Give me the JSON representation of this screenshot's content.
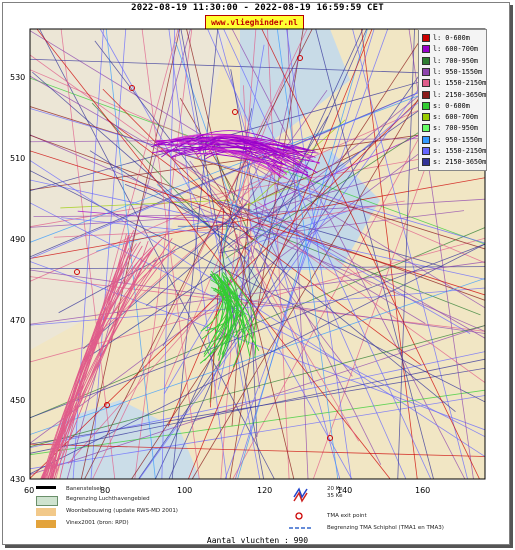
{
  "title": "2022-08-19 11:30:00 - 2022-08-19 16:59:59 CET",
  "brand": "www.vlieghinder.nl",
  "axes": {
    "y_labels": [
      "530",
      "510",
      "490",
      "470",
      "450",
      "430"
    ],
    "x_labels": [
      "60",
      "80",
      "100",
      "120",
      "140",
      "160"
    ]
  },
  "legend": [
    {
      "label": "l: 0-600m",
      "color": "#cc0000"
    },
    {
      "label": "l: 600-700m",
      "color": "#9900cc"
    },
    {
      "label": "l: 700-950m",
      "color": "#2e7d32"
    },
    {
      "label": "l: 950-1550m",
      "color": "#8e44ad"
    },
    {
      "label": "l: 1550-2150m",
      "color": "#e05c8a"
    },
    {
      "label": "l: 2150-3650m",
      "color": "#8b1a1a"
    },
    {
      "label": "s: 0-600m",
      "color": "#33cc33"
    },
    {
      "label": "s: 600-700m",
      "color": "#99cc00"
    },
    {
      "label": "s: 700-950m",
      "color": "#66ff66"
    },
    {
      "label": "s: 950-1550m",
      "color": "#3399ff"
    },
    {
      "label": "s: 1550-2150m",
      "color": "#6666ff"
    },
    {
      "label": "s: 2150-3650m",
      "color": "#333399"
    }
  ],
  "bottom_legend": {
    "runway": "Banenstelsel",
    "airport": "Begrenzing Luchthavengebied",
    "housing": "Woonbebouwing (update RWS-MD 2001)",
    "vinex": "Vinex2001 (bron: RPD)",
    "noise_kw": [
      "20 Ke",
      "35 Ke"
    ],
    "tma_exit": "TMA exit point",
    "tma_boundary": "Begrenzing TMA Schiphol  (TMA1 en TMA3)"
  },
  "count": "Aantal vluchten : 990",
  "colors": {
    "land": "#f3e8c8",
    "water": "#b9d3e6",
    "sea": "#e9e3d5",
    "accent": "#cc0000"
  }
}
